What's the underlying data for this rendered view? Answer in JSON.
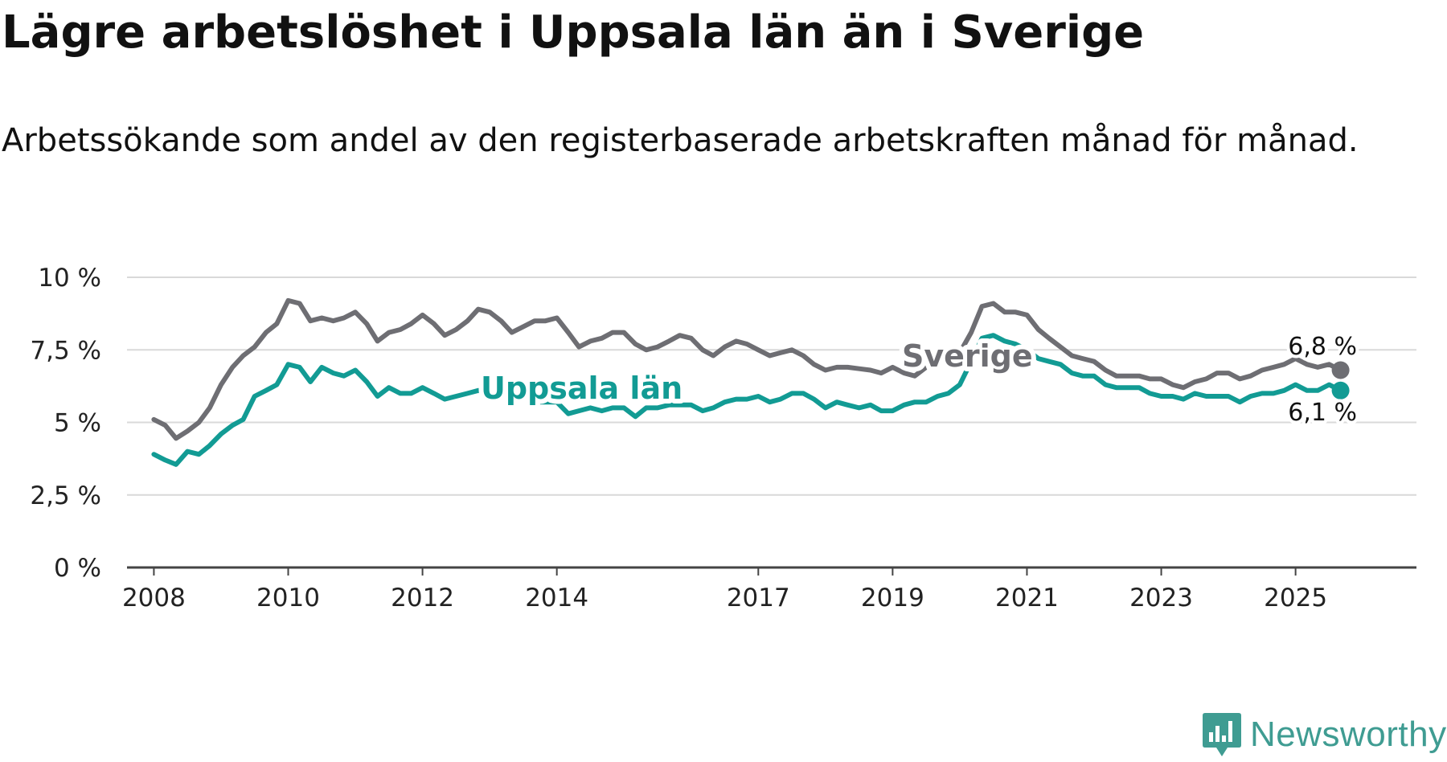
{
  "title": "Lägre arbetslöshet i Uppsala län än i Sverige",
  "subtitle": "Arbetssökande som andel av den registerbaserade arbetskraften månad för månad.",
  "colors": {
    "sverige": "#6e6e73",
    "uppsala": "#129b94",
    "grid": "#d9d9d9",
    "axis": "#444444"
  },
  "logo": {
    "text": "Newsworthy",
    "icon": "bar-chart-badge-icon"
  },
  "chart_data": {
    "type": "line",
    "title": "Lägre arbetslöshet i Uppsala län än i Sverige",
    "xlabel": "",
    "ylabel": "",
    "ylim": [
      0,
      10
    ],
    "xlim": [
      2007.6,
      2026.8
    ],
    "y_ticks": [
      {
        "value": 0,
        "label": "0 %"
      },
      {
        "value": 2.5,
        "label": "2,5 %"
      },
      {
        "value": 5,
        "label": "5 %"
      },
      {
        "value": 7.5,
        "label": "7,5 %"
      },
      {
        "value": 10,
        "label": "10 %"
      }
    ],
    "x_ticks": [
      {
        "value": 2008,
        "label": "2008"
      },
      {
        "value": 2010,
        "label": "2010"
      },
      {
        "value": 2012,
        "label": "2012"
      },
      {
        "value": 2014,
        "label": "2014"
      },
      {
        "value": 2017,
        "label": "2017"
      },
      {
        "value": 2019,
        "label": "2019"
      },
      {
        "value": 2021,
        "label": "2021"
      },
      {
        "value": 2023,
        "label": "2023"
      },
      {
        "value": 2025,
        "label": "2025"
      }
    ],
    "series": [
      {
        "name": "Sverige",
        "label": "Sverige",
        "end_label": "6,8 %",
        "points": [
          [
            2008.0,
            5.1
          ],
          [
            2008.17,
            4.9
          ],
          [
            2008.33,
            4.45
          ],
          [
            2008.5,
            4.7
          ],
          [
            2008.67,
            5.0
          ],
          [
            2008.83,
            5.5
          ],
          [
            2009.0,
            6.3
          ],
          [
            2009.17,
            6.9
          ],
          [
            2009.33,
            7.3
          ],
          [
            2009.5,
            7.6
          ],
          [
            2009.67,
            8.1
          ],
          [
            2009.83,
            8.4
          ],
          [
            2010.0,
            9.2
          ],
          [
            2010.17,
            9.1
          ],
          [
            2010.33,
            8.5
          ],
          [
            2010.5,
            8.6
          ],
          [
            2010.67,
            8.5
          ],
          [
            2010.83,
            8.6
          ],
          [
            2011.0,
            8.8
          ],
          [
            2011.17,
            8.4
          ],
          [
            2011.33,
            7.8
          ],
          [
            2011.5,
            8.1
          ],
          [
            2011.67,
            8.2
          ],
          [
            2011.83,
            8.4
          ],
          [
            2012.0,
            8.7
          ],
          [
            2012.17,
            8.4
          ],
          [
            2012.33,
            8.0
          ],
          [
            2012.5,
            8.2
          ],
          [
            2012.67,
            8.5
          ],
          [
            2012.83,
            8.9
          ],
          [
            2013.0,
            8.8
          ],
          [
            2013.17,
            8.5
          ],
          [
            2013.33,
            8.1
          ],
          [
            2013.5,
            8.3
          ],
          [
            2013.67,
            8.5
          ],
          [
            2013.83,
            8.5
          ],
          [
            2014.0,
            8.6
          ],
          [
            2014.17,
            8.1
          ],
          [
            2014.33,
            7.6
          ],
          [
            2014.5,
            7.8
          ],
          [
            2014.67,
            7.9
          ],
          [
            2014.83,
            8.1
          ],
          [
            2015.0,
            8.1
          ],
          [
            2015.17,
            7.7
          ],
          [
            2015.33,
            7.5
          ],
          [
            2015.5,
            7.6
          ],
          [
            2015.67,
            7.8
          ],
          [
            2015.83,
            8.0
          ],
          [
            2016.0,
            7.9
          ],
          [
            2016.17,
            7.5
          ],
          [
            2016.33,
            7.3
          ],
          [
            2016.5,
            7.6
          ],
          [
            2016.67,
            7.8
          ],
          [
            2016.83,
            7.7
          ],
          [
            2017.0,
            7.5
          ],
          [
            2017.17,
            7.3
          ],
          [
            2017.33,
            7.4
          ],
          [
            2017.5,
            7.5
          ],
          [
            2017.67,
            7.3
          ],
          [
            2017.83,
            7.0
          ],
          [
            2018.0,
            6.8
          ],
          [
            2018.17,
            6.9
          ],
          [
            2018.33,
            6.9
          ],
          [
            2018.5,
            6.85
          ],
          [
            2018.67,
            6.8
          ],
          [
            2018.83,
            6.7
          ],
          [
            2019.0,
            6.9
          ],
          [
            2019.17,
            6.7
          ],
          [
            2019.33,
            6.6
          ],
          [
            2019.5,
            6.9
          ],
          [
            2019.67,
            7.0
          ],
          [
            2019.83,
            7.2
          ],
          [
            2020.0,
            7.4
          ],
          [
            2020.17,
            8.1
          ],
          [
            2020.33,
            9.0
          ],
          [
            2020.5,
            9.1
          ],
          [
            2020.67,
            8.8
          ],
          [
            2020.83,
            8.8
          ],
          [
            2021.0,
            8.7
          ],
          [
            2021.17,
            8.2
          ],
          [
            2021.33,
            7.9
          ],
          [
            2021.5,
            7.6
          ],
          [
            2021.67,
            7.3
          ],
          [
            2021.83,
            7.2
          ],
          [
            2022.0,
            7.1
          ],
          [
            2022.17,
            6.8
          ],
          [
            2022.33,
            6.6
          ],
          [
            2022.5,
            6.6
          ],
          [
            2022.67,
            6.6
          ],
          [
            2022.83,
            6.5
          ],
          [
            2023.0,
            6.5
          ],
          [
            2023.17,
            6.3
          ],
          [
            2023.33,
            6.2
          ],
          [
            2023.5,
            6.4
          ],
          [
            2023.67,
            6.5
          ],
          [
            2023.83,
            6.7
          ],
          [
            2024.0,
            6.7
          ],
          [
            2024.17,
            6.5
          ],
          [
            2024.33,
            6.6
          ],
          [
            2024.5,
            6.8
          ],
          [
            2024.67,
            6.9
          ],
          [
            2024.83,
            7.0
          ],
          [
            2025.0,
            7.2
          ],
          [
            2025.17,
            7.0
          ],
          [
            2025.33,
            6.9
          ],
          [
            2025.5,
            7.0
          ],
          [
            2025.67,
            6.8
          ]
        ]
      },
      {
        "name": "Uppsala län",
        "label": "Uppsala län",
        "end_label": "6,1 %",
        "points": [
          [
            2008.0,
            3.9
          ],
          [
            2008.17,
            3.7
          ],
          [
            2008.33,
            3.55
          ],
          [
            2008.5,
            4.0
          ],
          [
            2008.67,
            3.9
          ],
          [
            2008.83,
            4.2
          ],
          [
            2009.0,
            4.6
          ],
          [
            2009.17,
            4.9
          ],
          [
            2009.33,
            5.1
          ],
          [
            2009.5,
            5.9
          ],
          [
            2009.67,
            6.1
          ],
          [
            2009.83,
            6.3
          ],
          [
            2010.0,
            7.0
          ],
          [
            2010.17,
            6.9
          ],
          [
            2010.33,
            6.4
          ],
          [
            2010.5,
            6.9
          ],
          [
            2010.67,
            6.7
          ],
          [
            2010.83,
            6.6
          ],
          [
            2011.0,
            6.8
          ],
          [
            2011.17,
            6.4
          ],
          [
            2011.33,
            5.9
          ],
          [
            2011.5,
            6.2
          ],
          [
            2011.67,
            6.0
          ],
          [
            2011.83,
            6.0
          ],
          [
            2012.0,
            6.2
          ],
          [
            2012.17,
            6.0
          ],
          [
            2012.33,
            5.8
          ],
          [
            2012.5,
            5.9
          ],
          [
            2012.67,
            6.0
          ],
          [
            2012.83,
            6.1
          ],
          [
            2013.0,
            6.0
          ],
          [
            2013.17,
            5.9
          ],
          [
            2013.33,
            5.8
          ],
          [
            2013.5,
            5.9
          ],
          [
            2013.67,
            5.7
          ],
          [
            2013.83,
            5.7
          ],
          [
            2014.0,
            5.7
          ],
          [
            2014.17,
            5.3
          ],
          [
            2014.33,
            5.4
          ],
          [
            2014.5,
            5.5
          ],
          [
            2014.67,
            5.4
          ],
          [
            2014.83,
            5.5
          ],
          [
            2015.0,
            5.5
          ],
          [
            2015.17,
            5.2
          ],
          [
            2015.33,
            5.5
          ],
          [
            2015.5,
            5.5
          ],
          [
            2015.67,
            5.6
          ],
          [
            2015.83,
            5.6
          ],
          [
            2016.0,
            5.6
          ],
          [
            2016.17,
            5.4
          ],
          [
            2016.33,
            5.5
          ],
          [
            2016.5,
            5.7
          ],
          [
            2016.67,
            5.8
          ],
          [
            2016.83,
            5.8
          ],
          [
            2017.0,
            5.9
          ],
          [
            2017.17,
            5.7
          ],
          [
            2017.33,
            5.8
          ],
          [
            2017.5,
            6.0
          ],
          [
            2017.67,
            6.0
          ],
          [
            2017.83,
            5.8
          ],
          [
            2018.0,
            5.5
          ],
          [
            2018.17,
            5.7
          ],
          [
            2018.33,
            5.6
          ],
          [
            2018.5,
            5.5
          ],
          [
            2018.67,
            5.6
          ],
          [
            2018.83,
            5.4
          ],
          [
            2019.0,
            5.4
          ],
          [
            2019.17,
            5.6
          ],
          [
            2019.33,
            5.7
          ],
          [
            2019.5,
            5.7
          ],
          [
            2019.67,
            5.9
          ],
          [
            2019.83,
            6.0
          ],
          [
            2020.0,
            6.3
          ],
          [
            2020.17,
            7.1
          ],
          [
            2020.33,
            7.9
          ],
          [
            2020.5,
            8.0
          ],
          [
            2020.67,
            7.8
          ],
          [
            2020.83,
            7.7
          ],
          [
            2021.0,
            7.5
          ],
          [
            2021.17,
            7.2
          ],
          [
            2021.33,
            7.1
          ],
          [
            2021.5,
            7.0
          ],
          [
            2021.67,
            6.7
          ],
          [
            2021.83,
            6.6
          ],
          [
            2022.0,
            6.6
          ],
          [
            2022.17,
            6.3
          ],
          [
            2022.33,
            6.2
          ],
          [
            2022.5,
            6.2
          ],
          [
            2022.67,
            6.2
          ],
          [
            2022.83,
            6.0
          ],
          [
            2023.0,
            5.9
          ],
          [
            2023.17,
            5.9
          ],
          [
            2023.33,
            5.8
          ],
          [
            2023.5,
            6.0
          ],
          [
            2023.67,
            5.9
          ],
          [
            2023.83,
            5.9
          ],
          [
            2024.0,
            5.9
          ],
          [
            2024.17,
            5.7
          ],
          [
            2024.33,
            5.9
          ],
          [
            2024.5,
            6.0
          ],
          [
            2024.67,
            6.0
          ],
          [
            2024.83,
            6.1
          ],
          [
            2025.0,
            6.3
          ],
          [
            2025.17,
            6.1
          ],
          [
            2025.33,
            6.1
          ],
          [
            2025.5,
            6.3
          ],
          [
            2025.67,
            6.1
          ]
        ]
      }
    ]
  }
}
